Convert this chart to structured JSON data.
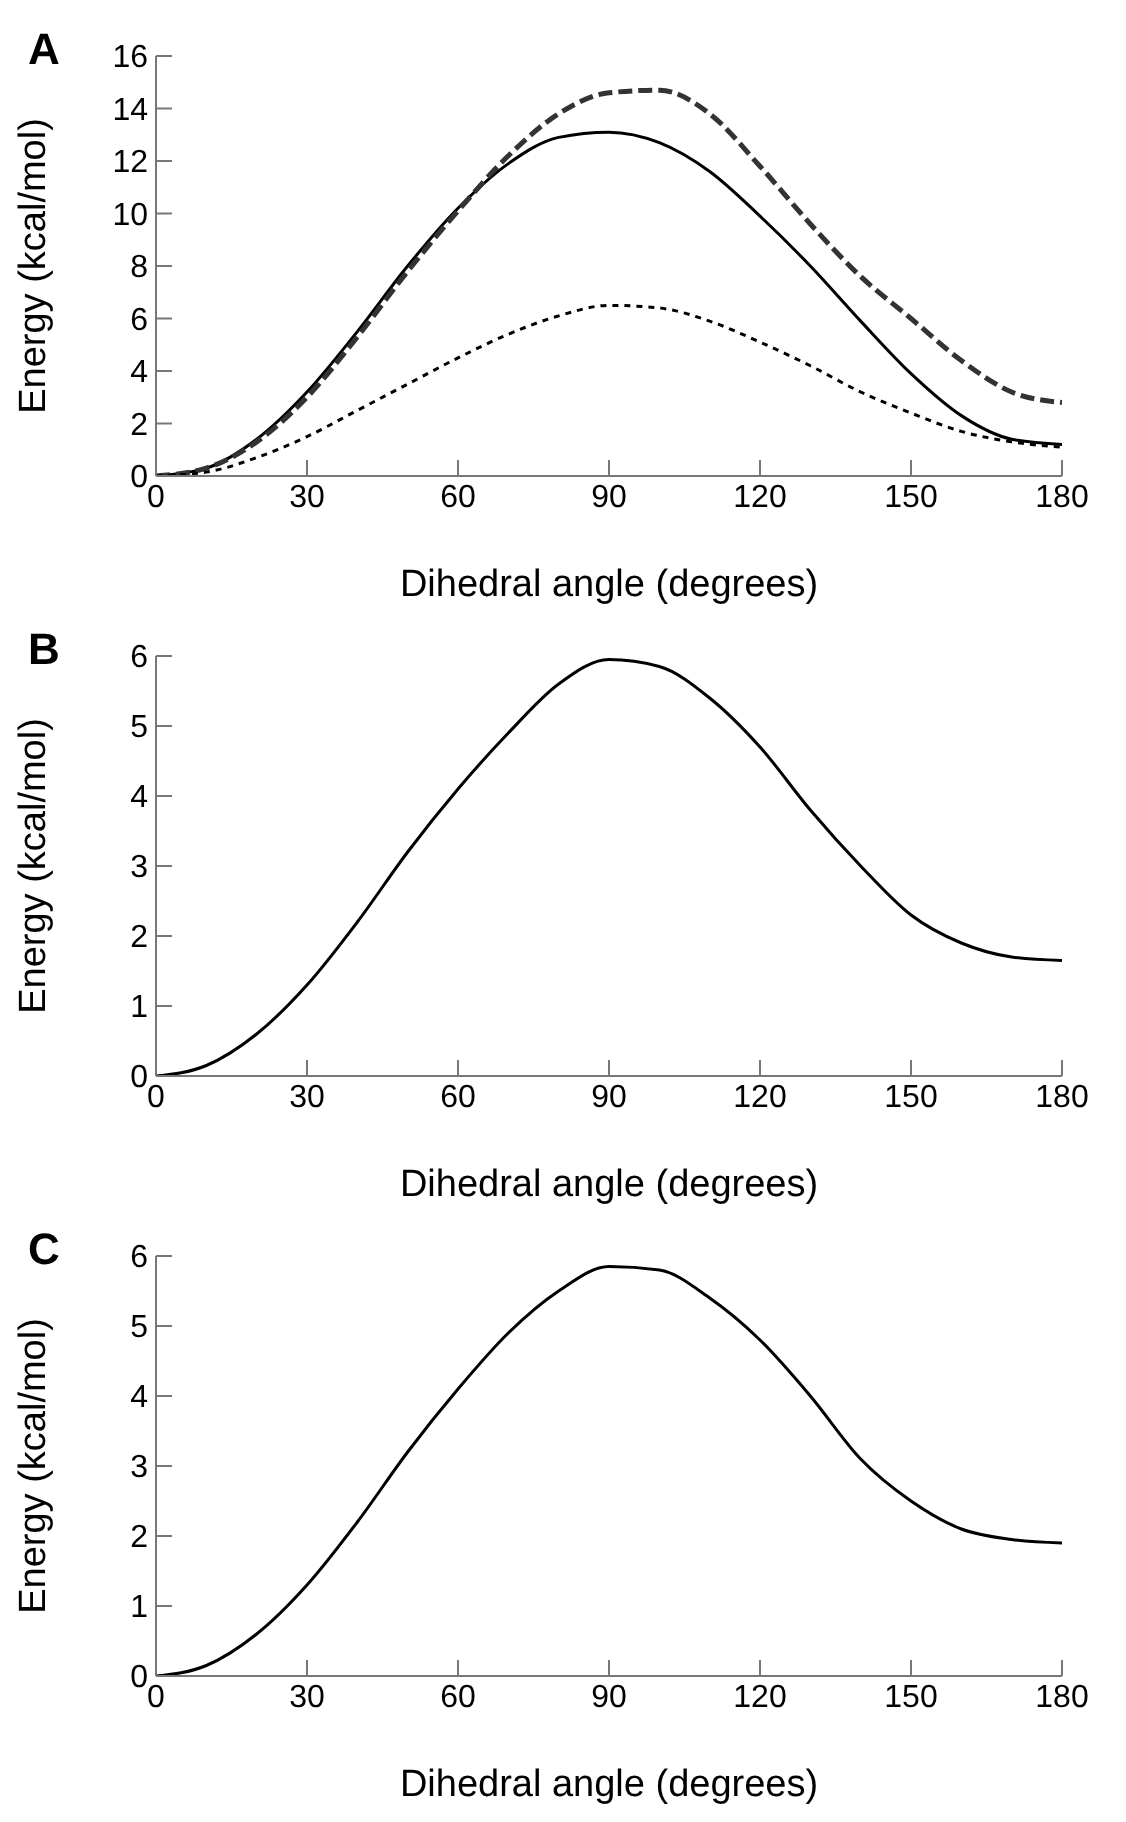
{
  "chart_data": [
    {
      "type": "line",
      "title": "A",
      "xlabel": "Dihedral angle (degrees)",
      "ylabel": "Energy (kcal/mol)",
      "x": [
        0,
        10,
        20,
        30,
        40,
        50,
        60,
        70,
        80,
        90,
        100,
        110,
        120,
        130,
        140,
        150,
        160,
        170,
        180
      ],
      "xlim": [
        0,
        180
      ],
      "xticks": [
        0,
        30,
        60,
        90,
        120,
        150,
        180
      ],
      "ylim": [
        0,
        16
      ],
      "yticks": [
        0,
        2,
        4,
        6,
        8,
        10,
        12,
        14,
        16
      ],
      "grid": false,
      "legend": false,
      "marker": "none",
      "series": [
        {
          "color": "#000000",
          "line_style": "solid",
          "values": [
            0,
            0.3,
            1.4,
            3.2,
            5.5,
            8,
            10.2,
            11.9,
            12.9,
            13.1,
            12.7,
            11.6,
            9.9,
            8,
            5.9,
            3.9,
            2.3,
            1.4,
            1.2
          ]
        },
        {
          "color": "#333333",
          "line_style": "dashed",
          "values": [
            0,
            0.3,
            1.3,
            3,
            5.3,
            7.8,
            10.1,
            12.2,
            13.8,
            14.6,
            14.7,
            13.8,
            11.8,
            9.6,
            7.6,
            6,
            4.4,
            3.2,
            2.8
          ]
        },
        {
          "color": "#000000",
          "line_style": "dotted",
          "values": [
            0,
            0.15,
            0.7,
            1.5,
            2.5,
            3.5,
            4.5,
            5.4,
            6.1,
            6.5,
            6.4,
            5.9,
            5.1,
            4.2,
            3.2,
            2.4,
            1.7,
            1.3,
            1.1
          ]
        }
      ]
    },
    {
      "type": "line",
      "title": "B",
      "xlabel": "Dihedral angle (degrees)",
      "ylabel": "Energy (kcal/mol)",
      "x": [
        0,
        10,
        20,
        30,
        40,
        50,
        60,
        70,
        80,
        90,
        100,
        110,
        120,
        130,
        140,
        150,
        160,
        170,
        180
      ],
      "xlim": [
        0,
        180
      ],
      "xticks": [
        0,
        30,
        60,
        90,
        120,
        150,
        180
      ],
      "ylim": [
        0,
        6
      ],
      "yticks": [
        0,
        1,
        2,
        3,
        4,
        5,
        6
      ],
      "grid": false,
      "legend": false,
      "marker": "none",
      "series": [
        {
          "color": "#000000",
          "line_style": "solid",
          "values": [
            0,
            0.15,
            0.6,
            1.3,
            2.2,
            3.2,
            4.1,
            4.9,
            5.6,
            5.95,
            5.85,
            5.4,
            4.7,
            3.8,
            3,
            2.3,
            1.9,
            1.7,
            1.65
          ]
        }
      ]
    },
    {
      "type": "line",
      "title": "C",
      "xlabel": "Dihedral angle (degrees)",
      "ylabel": "Energy (kcal/mol)",
      "x": [
        0,
        10,
        20,
        30,
        40,
        50,
        60,
        70,
        80,
        90,
        100,
        110,
        120,
        130,
        140,
        150,
        160,
        170,
        180
      ],
      "xlim": [
        0,
        180
      ],
      "xticks": [
        0,
        30,
        60,
        90,
        120,
        150,
        180
      ],
      "ylim": [
        0,
        6
      ],
      "yticks": [
        0,
        1,
        2,
        3,
        4,
        5,
        6
      ],
      "grid": false,
      "legend": false,
      "marker": "none",
      "series": [
        {
          "color": "#000000",
          "line_style": "solid",
          "values": [
            0,
            0.15,
            0.6,
            1.3,
            2.2,
            3.2,
            4.1,
            4.9,
            5.5,
            5.85,
            5.8,
            5.4,
            4.8,
            4,
            3.1,
            2.5,
            2.1,
            1.95,
            1.9
          ]
        }
      ]
    }
  ]
}
